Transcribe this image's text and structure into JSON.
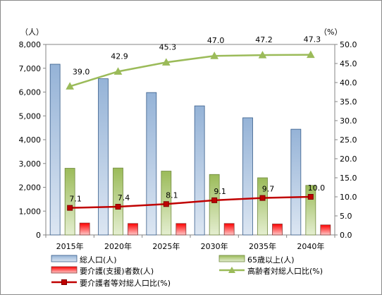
{
  "chart_data": {
    "type": "bar",
    "categories": [
      "2015年",
      "2020年",
      "2025年",
      "2030年",
      "2035年",
      "2040年"
    ],
    "y_left": {
      "unit_label": "（人）",
      "ylim": [
        0,
        8000
      ],
      "ticks": [
        "0",
        "1,000",
        "2,000",
        "3,000",
        "4,000",
        "5,000",
        "6,000",
        "7,000",
        "8,000"
      ]
    },
    "y_right": {
      "unit_label": "（%）",
      "ylim": [
        0,
        50
      ],
      "ticks": [
        "0.0",
        "5.0",
        "10.0",
        "15.0",
        "20.0",
        "25.0",
        "30.0",
        "35.0",
        "40.0",
        "45.0",
        "50.0"
      ]
    },
    "series": [
      {
        "name": "総人口(人)",
        "kind": "bar",
        "axis": "left",
        "color": "#4f81bd",
        "values": [
          7170,
          6560,
          5980,
          5420,
          4920,
          4440
        ]
      },
      {
        "name": "65歳以上(人)",
        "kind": "bar",
        "axis": "left",
        "color": "#9bbb59",
        "values": [
          2800,
          2810,
          2680,
          2540,
          2400,
          2080
        ]
      },
      {
        "name": "要介護(支援)者数(人)",
        "kind": "bar",
        "axis": "left",
        "color": "#c0504d",
        "values": [
          500,
          480,
          480,
          480,
          460,
          420
        ]
      },
      {
        "name": "高齢者対総人口比(%)",
        "kind": "line",
        "axis": "right",
        "color": "#9bbb59",
        "marker": "triangle",
        "values": [
          39.0,
          42.9,
          45.3,
          47.0,
          47.2,
          47.3
        ],
        "labels": [
          "39.0",
          "42.9",
          "45.3",
          "47.0",
          "47.2",
          "47.3"
        ]
      },
      {
        "name": "要介護者等対総人口比(%)",
        "kind": "line",
        "axis": "right",
        "color": "#c00000",
        "marker": "square",
        "values": [
          7.1,
          7.4,
          8.1,
          9.1,
          9.7,
          10.0
        ],
        "labels": [
          "7.1",
          "7.4",
          "8.1",
          "9.1",
          "9.7",
          "10.0"
        ]
      }
    ],
    "legend": {
      "placement": "bottom",
      "items": [
        {
          "name": "総人口(人)",
          "icon": "bar-blue"
        },
        {
          "name": "65歳以上(人)",
          "icon": "bar-green"
        },
        {
          "name": "要介護(支援)者数(人)",
          "icon": "bar-red"
        },
        {
          "name": "高齢者対総人口比(%)",
          "icon": "line-triangle-green"
        },
        {
          "name": "要介護者等対総人口比(%)",
          "icon": "line-square-red"
        }
      ]
    },
    "grid": false
  }
}
